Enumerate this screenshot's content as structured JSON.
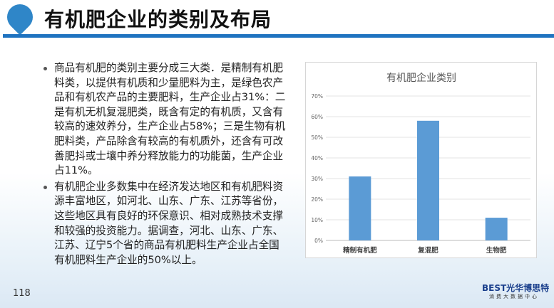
{
  "header": {
    "title": "有机肥企业的类别及布局"
  },
  "bullets": [
    {
      "lines": [
        "商品有机肥的类别主要分成三大类．是精制有机肥",
        "料类，以提供有机质和少量肥料为主，是绿色农产",
        "品和有机农产品的主要肥料，生产企业占31%：二",
        "是有机无机复混肥类，既含有定的有机质，又含有",
        "较高的速效养分，生产企业占58%；三是生物有机",
        "肥料类，产品除含有较高的有机质外，还含有可改",
        "善肥抖或士壤中养分释放能力的功能菌，生产企业",
        "占11%。"
      ]
    },
    {
      "lines": [
        "有机肥企业多数集中在经济发达地区和有机肥料资",
        "源丰富地区，如河北、山东、广东、江苏等省份，",
        "这些地区具有良好的环保意识、相对成熟技术支撑",
        "和较强的投资能力。据调查，河北、山东、广东、",
        "江苏、辽宁5个省的商品有机肥料生产企业占全国",
        "有机肥料生产企业的50%以上。"
      ]
    }
  ],
  "footer": {
    "page_number": "118",
    "brand": "BEST光华博思特",
    "brand_sub": "消费大数据中心"
  },
  "chart_data": {
    "type": "bar",
    "title": "有机肥企业类别",
    "categories": [
      "精制有机肥",
      "复混肥",
      "生物肥"
    ],
    "values": [
      31,
      58,
      11
    ],
    "ylim": [
      0,
      70
    ],
    "yticks": [
      "0%",
      "10%",
      "20%",
      "30%",
      "40%",
      "50%",
      "60%",
      "70%"
    ],
    "grid": true,
    "bar_color": "#5b9bd5"
  }
}
